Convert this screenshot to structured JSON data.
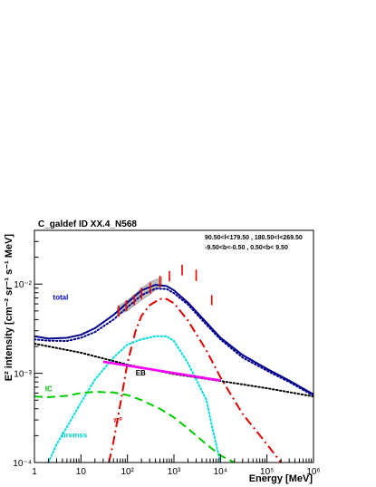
{
  "chart_data": {
    "type": "line",
    "title": "C_galdef ID XX.4_N568",
    "region_lines": [
      "90.50<l<179.50 , 180.50<l<269.50",
      "-9.50<b<-0.50 ,  0.50<b< 9.50"
    ],
    "xlabel": "Energy [MeV]",
    "ylabel": "E² intensity [cm⁻² sr⁻¹ s⁻¹ MeV]",
    "x_scale": "log",
    "y_scale": "log",
    "xlim": [
      1,
      1000000
    ],
    "ylim": [
      0.0001,
      0.04
    ],
    "x_ticks": [
      {
        "value": 1,
        "label": "1"
      },
      {
        "value": 10,
        "label": "10"
      },
      {
        "value": 100,
        "label": "10²"
      },
      {
        "value": 1000,
        "label": "10³"
      },
      {
        "value": 10000,
        "label": "10⁴"
      },
      {
        "value": 100000,
        "label": "10⁵"
      },
      {
        "value": 1000000,
        "label": "10⁶"
      }
    ],
    "y_ticks": [
      {
        "value": 0.0001,
        "label": "10⁻⁴"
      },
      {
        "value": 0.001,
        "label": "10⁻³"
      },
      {
        "value": 0.01,
        "label": "10⁻²"
      }
    ],
    "series": [
      {
        "name": "total",
        "color": "#00008b",
        "dash": "solid",
        "points": [
          [
            1,
            0.0026
          ],
          [
            2,
            0.00245
          ],
          [
            5,
            0.0025
          ],
          [
            10,
            0.0027
          ],
          [
            20,
            0.0032
          ],
          [
            50,
            0.0045
          ],
          [
            100,
            0.0062
          ],
          [
            200,
            0.0085
          ],
          [
            400,
            0.0098
          ],
          [
            700,
            0.0095
          ],
          [
            1000,
            0.0085
          ],
          [
            2000,
            0.0062
          ],
          [
            5000,
            0.0037
          ],
          [
            10000,
            0.0025
          ],
          [
            30000,
            0.0016
          ],
          [
            100000,
            0.00112
          ],
          [
            300000,
            0.00083
          ],
          [
            1000000,
            0.00058
          ]
        ]
      },
      {
        "name": "",
        "color": "#00008b",
        "dash": "dotted",
        "points": [
          [
            1,
            0.0024
          ],
          [
            2,
            0.00232
          ],
          [
            5,
            0.0023
          ],
          [
            10,
            0.0025
          ],
          [
            20,
            0.0029
          ],
          [
            50,
            0.004
          ],
          [
            100,
            0.0055
          ],
          [
            200,
            0.0075
          ],
          [
            400,
            0.0089
          ],
          [
            700,
            0.0088
          ],
          [
            1000,
            0.0079
          ],
          [
            2000,
            0.0059
          ],
          [
            5000,
            0.0035
          ],
          [
            10000,
            0.0024
          ],
          [
            30000,
            0.0015
          ],
          [
            100000,
            0.00107
          ],
          [
            300000,
            0.0008
          ],
          [
            1000000,
            0.00056
          ]
        ]
      },
      {
        "name": "π⁰",
        "color": "#dd0000",
        "dash": "dashdot",
        "points": [
          [
            40,
            0.0001
          ],
          [
            50,
            0.00017
          ],
          [
            70,
            0.00045
          ],
          [
            100,
            0.0013
          ],
          [
            150,
            0.003
          ],
          [
            200,
            0.0044
          ],
          [
            300,
            0.0058
          ],
          [
            500,
            0.0068
          ],
          [
            700,
            0.0068
          ],
          [
            1000,
            0.0061
          ],
          [
            2000,
            0.0039
          ],
          [
            5000,
            0.0018
          ],
          [
            10000,
            0.0009
          ],
          [
            30000,
            0.00035
          ],
          [
            100000,
            0.00016
          ],
          [
            200000,
            0.0001
          ]
        ]
      },
      {
        "name": "bremss",
        "color": "#00dddd",
        "dash": "dotted",
        "points": [
          [
            2,
            0.0001
          ],
          [
            3,
            0.00016
          ],
          [
            5,
            0.00025
          ],
          [
            10,
            0.00047
          ],
          [
            20,
            0.00085
          ],
          [
            50,
            0.0015
          ],
          [
            100,
            0.0021
          ],
          [
            200,
            0.0024
          ],
          [
            400,
            0.0026
          ],
          [
            700,
            0.0026
          ],
          [
            1000,
            0.0023
          ],
          [
            2000,
            0.0013
          ],
          [
            5000,
            0.0005
          ],
          [
            7000,
            0.00022
          ],
          [
            10000,
            0.0001
          ]
        ]
      },
      {
        "name": "IC",
        "color": "#00cc00",
        "dash": "dashed",
        "points": [
          [
            1,
            0.00055
          ],
          [
            2,
            0.00054
          ],
          [
            5,
            0.00056
          ],
          [
            10,
            0.0006
          ],
          [
            20,
            0.00062
          ],
          [
            50,
            0.00061
          ],
          [
            100,
            0.00057
          ],
          [
            200,
            0.0005
          ],
          [
            500,
            0.0004
          ],
          [
            1000,
            0.00032
          ],
          [
            2000,
            0.00024
          ],
          [
            5000,
            0.00016
          ],
          [
            10000,
            0.00012
          ],
          [
            20000,
            0.0001
          ]
        ]
      },
      {
        "name": "EB",
        "color": "#000000",
        "dash": "dotted",
        "points": [
          [
            1,
            0.00215
          ],
          [
            10,
            0.0017
          ],
          [
            100,
            0.00125
          ],
          [
            1000,
            0.00098
          ],
          [
            10000,
            0.00082
          ],
          [
            100000,
            0.00068
          ],
          [
            1000000,
            0.00055
          ]
        ]
      },
      {
        "name": "",
        "color": "#ff00ff",
        "dash": "solid",
        "points": [
          [
            30,
            0.00135
          ],
          [
            10000,
            0.00083
          ]
        ]
      }
    ],
    "data_points": [
      {
        "x": 65,
        "ylow": 0.0043,
        "yhigh": 0.0057
      },
      {
        "x": 95,
        "ylow": 0.005,
        "yhigh": 0.0066
      },
      {
        "x": 140,
        "ylow": 0.0058,
        "yhigh": 0.0076
      },
      {
        "x": 200,
        "ylow": 0.0068,
        "yhigh": 0.0091
      },
      {
        "x": 310,
        "ylow": 0.0078,
        "yhigh": 0.0104
      },
      {
        "x": 500,
        "ylow": 0.0092,
        "yhigh": 0.0124
      },
      {
        "x": 800,
        "ylow": 0.0107,
        "yhigh": 0.014
      },
      {
        "x": 1500,
        "ylow": 0.0125,
        "yhigh": 0.0165
      },
      {
        "x": 3000,
        "ylow": 0.0108,
        "yhigh": 0.0145
      },
      {
        "x": 6500,
        "ylow": 0.0058,
        "yhigh": 0.0075
      }
    ],
    "band": [
      [
        60,
        0.0056,
        0.0045
      ],
      [
        100,
        0.0066,
        0.005
      ],
      [
        200,
        0.009,
        0.0066
      ],
      [
        300,
        0.0105,
        0.0076
      ],
      [
        400,
        0.0112,
        0.0085
      ],
      [
        550,
        0.012,
        0.0095
      ]
    ],
    "labels": [
      {
        "text": "total",
        "color": "#0000cc",
        "x": 2.5,
        "y": 0.0067
      },
      {
        "text": "IC",
        "color": "#00bb00",
        "x": 1.7,
        "y": 0.00063
      },
      {
        "text": "bremss",
        "color": "#00cccc",
        "x": 3.8,
        "y": 0.00019
      },
      {
        "text": "EB",
        "color": "#000000",
        "x": 150,
        "y": 0.00095
      },
      {
        "text": "π⁰",
        "color": "#cc0000",
        "x": 50,
        "y": 0.00028
      }
    ]
  }
}
